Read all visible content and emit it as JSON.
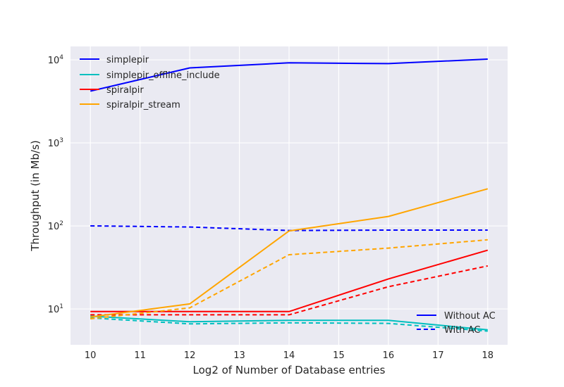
{
  "chart_data": {
    "type": "line",
    "xlabel": "Log2 of Number of Database entries",
    "ylabel": "Throughput (in Mb/s)",
    "xlim": [
      9.6,
      18.4
    ],
    "ylim": [
      3.7,
      14500
    ],
    "yscale": "log",
    "grid": true,
    "x_ticks": [
      10,
      11,
      12,
      13,
      14,
      15,
      16,
      17,
      18
    ],
    "y_ticks": [
      {
        "value": 10,
        "base": "10",
        "exp": "1"
      },
      {
        "value": 100,
        "base": "10",
        "exp": "2"
      },
      {
        "value": 1000,
        "base": "10",
        "exp": "3"
      },
      {
        "value": 10000,
        "base": "10",
        "exp": "4"
      }
    ],
    "x": [
      10,
      12,
      14,
      16,
      18
    ],
    "series": [
      {
        "name": "simplepir",
        "color": "#0000ff",
        "without_ac": [
          4200,
          8000,
          9200,
          9000,
          10200
        ],
        "with_ac": [
          100,
          97,
          88,
          89,
          89
        ]
      },
      {
        "name": "simplepir_offline_include",
        "color": "#00bfbf",
        "without_ac": [
          8.2,
          7.0,
          7.3,
          7.3,
          5.6
        ],
        "with_ac": [
          7.8,
          6.6,
          6.8,
          6.7,
          5.4
        ]
      },
      {
        "name": "spiralpir",
        "color": "#ff0000",
        "without_ac": [
          9.3,
          9.3,
          9.3,
          23,
          51
        ],
        "with_ac": [
          8.5,
          8.5,
          8.5,
          18.5,
          33
        ]
      },
      {
        "name": "spiralpir_stream",
        "color": "#ffa500",
        "without_ac": [
          8.0,
          11.5,
          87,
          130,
          280
        ],
        "with_ac": [
          7.6,
          10.3,
          45,
          54,
          68
        ]
      }
    ],
    "style_legend": {
      "placement": "bottom-right",
      "entries": [
        {
          "label": "Without AC",
          "style": "solid",
          "color": "#0000ff"
        },
        {
          "label": "With AC",
          "style": "dashed",
          "color": "#0000ff"
        }
      ]
    },
    "series_legend_placement": "top-left"
  }
}
